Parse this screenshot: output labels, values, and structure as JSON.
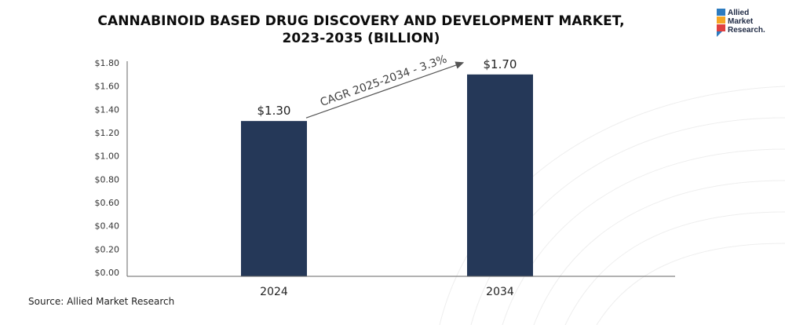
{
  "title_line1": "CANNABINOID BASED DRUG DISCOVERY AND DEVELOPMENT MARKET,",
  "title_line2": "2023-2035 (BILLION)",
  "logo": {
    "line1": "Allied",
    "line2": "Market",
    "line3": "Research."
  },
  "source": "Source: Allied Market Research",
  "annotation": "CAGR 2025-2034 - 3.3%",
  "colors": {
    "bar": "#253858",
    "axis": "#555555"
  },
  "chart_data": {
    "type": "bar",
    "categories": [
      "2024",
      "2034"
    ],
    "values": [
      1.3,
      1.7
    ],
    "value_labels": [
      "$1.30",
      "$1.70"
    ],
    "yticks": [
      "$0.00",
      "$0.20",
      "$0.40",
      "$0.60",
      "$0.80",
      "$1.00",
      "$1.20",
      "$1.40",
      "$1.60",
      "$1.80"
    ],
    "ylim": [
      0,
      1.8
    ],
    "grid": false,
    "legend": "none"
  }
}
